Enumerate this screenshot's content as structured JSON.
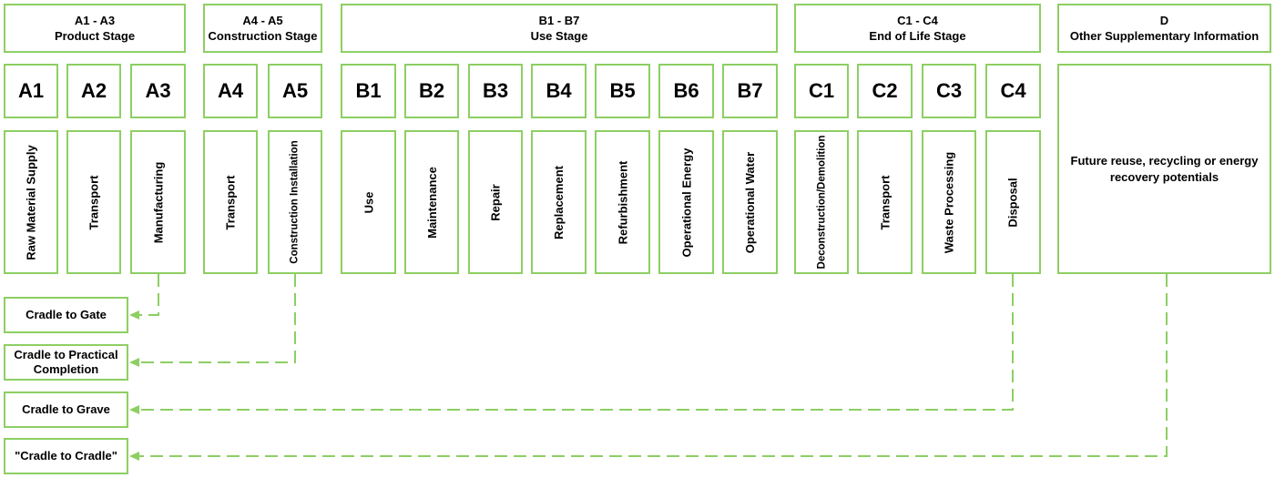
{
  "stages": [
    {
      "id": "A1-A3",
      "code": "A1 - A3",
      "name": "Product Stage"
    },
    {
      "id": "A4-A5",
      "code": "A4 - A5",
      "name": "Construction Stage"
    },
    {
      "id": "B1-B7",
      "code": "B1 - B7",
      "name": "Use Stage"
    },
    {
      "id": "C1-C4",
      "code": "C1 - C4",
      "name": "End of Life Stage"
    },
    {
      "id": "D",
      "code": "D",
      "name": "Other Supplementary Information"
    }
  ],
  "modules": [
    {
      "code": "A1",
      "label": "Raw Material Supply"
    },
    {
      "code": "A2",
      "label": "Transport"
    },
    {
      "code": "A3",
      "label": "Manufacturing"
    },
    {
      "code": "A4",
      "label": "Transport"
    },
    {
      "code": "A5",
      "label": "Construction Installation"
    },
    {
      "code": "B1",
      "label": "Use"
    },
    {
      "code": "B2",
      "label": "Maintenance"
    },
    {
      "code": "B3",
      "label": "Repair"
    },
    {
      "code": "B4",
      "label": "Replacement"
    },
    {
      "code": "B5",
      "label": "Refurbishment"
    },
    {
      "code": "B6",
      "label": "Operational Energy"
    },
    {
      "code": "B7",
      "label": "Operational Water"
    },
    {
      "code": "C1",
      "label": "Deconstruction/Demolition"
    },
    {
      "code": "C2",
      "label": "Transport"
    },
    {
      "code": "C3",
      "label": "Waste Processing"
    },
    {
      "code": "C4",
      "label": "Disposal"
    }
  ],
  "module_d": {
    "label": "Future reuse, recycling or energy recovery potentials"
  },
  "results": [
    {
      "label": "Cradle to Gate"
    },
    {
      "label": "Cradle to Practical Completion"
    },
    {
      "label": "Cradle to Grave"
    },
    {
      "label": "\"Cradle to Cradle\""
    }
  ],
  "colors": {
    "accent": "#8dcf63"
  }
}
